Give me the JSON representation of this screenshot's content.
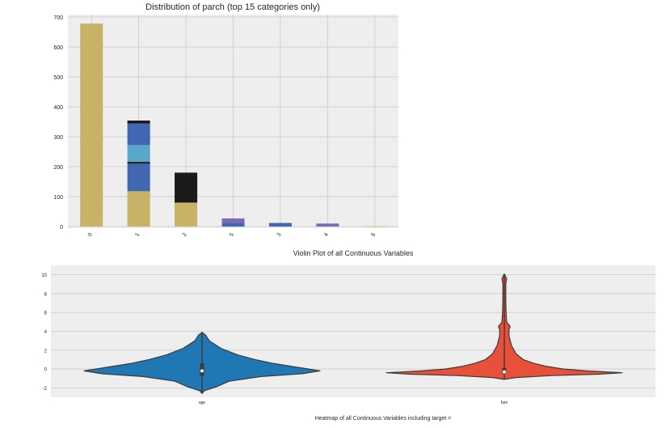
{
  "colors": {
    "plot_bg": "#eeeeee",
    "grid": "#c9c9c9",
    "tan": "#c9b266",
    "blue": "#4267b2",
    "cyan": "#5aa8c9",
    "black": "#1a1a1a",
    "purple": "#7b6bb5",
    "violin_blue": "#1f77b4",
    "violin_red": "#e8503a",
    "edge": "#3a3a3a"
  },
  "chart_data": [
    {
      "type": "bar",
      "stacked": true,
      "title": "Distribution of parch (top 15 categories only)",
      "xlabel": "",
      "ylabel": "",
      "categories": [
        "0",
        "1",
        "2",
        "5",
        "3",
        "4",
        "6"
      ],
      "ylim": [
        0,
        700
      ],
      "yticks": [
        0,
        100,
        200,
        300,
        400,
        500,
        600,
        700
      ],
      "grid": true,
      "legend": "none",
      "bars": [
        {
          "category": "0",
          "segments": [
            {
              "color": "tan",
              "value": 678
            }
          ]
        },
        {
          "category": "1",
          "segments": [
            {
              "color": "tan",
              "value": 118
            },
            {
              "color": "blue",
              "value": 92
            },
            {
              "color": "black",
              "value": 6
            },
            {
              "color": "cyan",
              "value": 56
            },
            {
              "color": "blue",
              "value": 72
            },
            {
              "color": "black",
              "value": 10
            }
          ]
        },
        {
          "category": "2",
          "segments": [
            {
              "color": "tan",
              "value": 80
            },
            {
              "color": "black",
              "value": 100
            }
          ]
        },
        {
          "category": "5",
          "segments": [
            {
              "color": "blue",
              "value": 12
            },
            {
              "color": "purple",
              "value": 15
            }
          ]
        },
        {
          "category": "3",
          "segments": [
            {
              "color": "blue",
              "value": 12
            }
          ]
        },
        {
          "category": "4",
          "segments": [
            {
              "color": "purple",
              "value": 10
            }
          ]
        },
        {
          "category": "6",
          "segments": [
            {
              "color": "tan",
              "value": 1
            }
          ]
        }
      ]
    },
    {
      "type": "violin",
      "title": "Violin Plot of all Continuous Variables",
      "categories": [
        "age",
        "fare"
      ],
      "ylim": [
        -3,
        11
      ],
      "yticks": [
        -2,
        0,
        2,
        4,
        6,
        8,
        10
      ],
      "grid": true,
      "series": [
        {
          "name": "age",
          "color": "violin_blue",
          "min": -2.6,
          "max": 3.9,
          "median": -0.2,
          "q1": -0.7,
          "q3": 0.6,
          "density": [
            [
              -2.6,
              0.0
            ],
            [
              -2.3,
              0.02
            ],
            [
              -1.9,
              0.12
            ],
            [
              -1.3,
              0.23
            ],
            [
              -0.8,
              0.5
            ],
            [
              -0.5,
              0.85
            ],
            [
              -0.2,
              1.0
            ],
            [
              0.2,
              0.8
            ],
            [
              0.6,
              0.6
            ],
            [
              1.0,
              0.45
            ],
            [
              1.5,
              0.3
            ],
            [
              2.2,
              0.16
            ],
            [
              3.0,
              0.06
            ],
            [
              3.6,
              0.03
            ],
            [
              3.9,
              0.0
            ]
          ]
        },
        {
          "name": "fare",
          "color": "violin_red",
          "min": -1.1,
          "max": 10.1,
          "median": -0.3,
          "q1": -0.45,
          "q3": 0.1,
          "density": [
            [
              -1.1,
              0.0
            ],
            [
              -0.9,
              0.1
            ],
            [
              -0.7,
              0.4
            ],
            [
              -0.55,
              0.8
            ],
            [
              -0.4,
              1.0
            ],
            [
              -0.2,
              0.7
            ],
            [
              0.0,
              0.5
            ],
            [
              0.3,
              0.35
            ],
            [
              0.6,
              0.25
            ],
            [
              1.0,
              0.16
            ],
            [
              1.6,
              0.1
            ],
            [
              2.5,
              0.06
            ],
            [
              3.5,
              0.04
            ],
            [
              4.2,
              0.04
            ],
            [
              4.5,
              0.05
            ],
            [
              5.0,
              0.02
            ],
            [
              6.0,
              0.015
            ],
            [
              7.0,
              0.013
            ],
            [
              8.0,
              0.012
            ],
            [
              9.0,
              0.012
            ],
            [
              9.6,
              0.02
            ],
            [
              10.1,
              0.0
            ]
          ]
        }
      ]
    }
  ],
  "footer": {
    "text": "Heatmap of all Continuous Variables including target ="
  }
}
